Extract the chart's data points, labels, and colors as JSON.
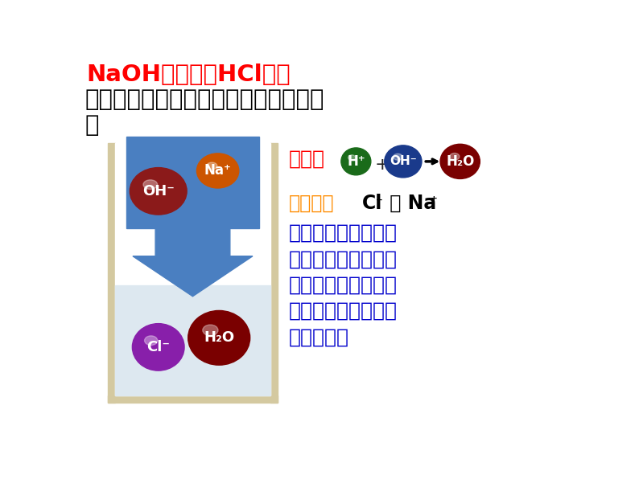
{
  "title1": "NaOH溶液和稀HCl反应",
  "title2": "反应前后溶液中离子发生了怎样的变化",
  "title1_color": "#ff0000",
  "title2_color": "#000000",
  "essence_label": "实质：",
  "bystander_text1": "旁观者：",
  "bystander_text2": "Cl",
  "bystander_text3": " 和 Na",
  "description_lines": [
    "氢氧化鑙与盐酸反应",
    "的本质：酸溶液中的",
    "氢离子和碱溶液中的",
    "氢氧根离子反应生成",
    "水的过程。"
  ],
  "essence_color": "#ff0000",
  "bystander_color": "#ff8c00",
  "description_color": "#0000cc",
  "beaker_wall_color": "#d4c9a0",
  "beaker_inner_color": "#ffffff",
  "liquid_color": "#dde8f0",
  "funnel_color": "#4a7fc1",
  "oh_minus_color": "#8b1a1a",
  "na_plus_color": "#cc5500",
  "cl_minus_color": "#881faa",
  "h2o_color": "#7a0000",
  "h_plus_color": "#1a6b1a",
  "oh_ion_color": "#1a3a8b",
  "h2o_result_color": "#7a0000"
}
